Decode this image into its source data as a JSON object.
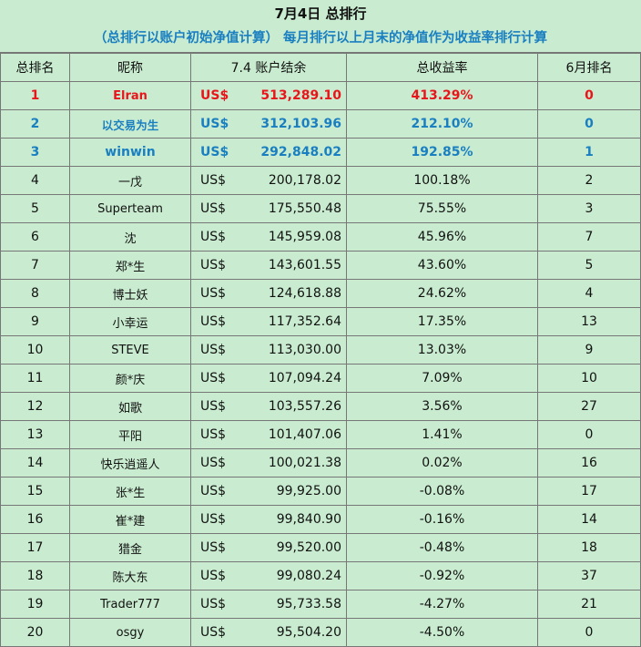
{
  "title": "7月4日 总排行",
  "subtitle": "（总排行以账户初始净值计算）  每月排行以上月末的净值作为收益率排行计算",
  "columns": {
    "rank": "总排名",
    "nickname": "昵称",
    "account": "7.4 账户结余",
    "return": "总收益率",
    "june_rank": "6月排名"
  },
  "currency": "US$",
  "rows": [
    {
      "rank": "1",
      "name": "Elran",
      "balance": "513,289.10",
      "return": "413.29%",
      "june": "0"
    },
    {
      "rank": "2",
      "name": "以交易为生",
      "balance": "312,103.96",
      "return": "212.10%",
      "june": "0"
    },
    {
      "rank": "3",
      "name": "winwin",
      "balance": "292,848.02",
      "return": "192.85%",
      "june": "1"
    },
    {
      "rank": "4",
      "name": "一戊",
      "balance": "200,178.02",
      "return": "100.18%",
      "june": "2"
    },
    {
      "rank": "5",
      "name": "Superteam",
      "balance": "175,550.48",
      "return": "75.55%",
      "june": "3"
    },
    {
      "rank": "6",
      "name": "沈",
      "balance": "145,959.08",
      "return": "45.96%",
      "june": "7"
    },
    {
      "rank": "7",
      "name": "郑*生",
      "balance": "143,601.55",
      "return": "43.60%",
      "june": "5"
    },
    {
      "rank": "8",
      "name": "博士妖",
      "balance": "124,618.88",
      "return": "24.62%",
      "june": "4"
    },
    {
      "rank": "9",
      "name": "小幸运",
      "balance": "117,352.64",
      "return": "17.35%",
      "june": "13"
    },
    {
      "rank": "10",
      "name": "STEVE",
      "balance": "113,030.00",
      "return": "13.03%",
      "june": "9"
    },
    {
      "rank": "11",
      "name": "颜*庆",
      "balance": "107,094.24",
      "return": "7.09%",
      "june": "10"
    },
    {
      "rank": "12",
      "name": "如歌",
      "balance": "103,557.26",
      "return": "3.56%",
      "june": "27"
    },
    {
      "rank": "13",
      "name": "平阳",
      "balance": "101,407.06",
      "return": "1.41%",
      "june": "0"
    },
    {
      "rank": "14",
      "name": "快乐逍遥人",
      "balance": "100,021.38",
      "return": "0.02%",
      "june": "16"
    },
    {
      "rank": "15",
      "name": "张*生",
      "balance": "99,925.00",
      "return": "-0.08%",
      "june": "17"
    },
    {
      "rank": "16",
      "name": "崔*建",
      "balance": "99,840.90",
      "return": "-0.16%",
      "june": "14"
    },
    {
      "rank": "17",
      "name": "猎金",
      "balance": "99,520.00",
      "return": "-0.48%",
      "june": "18"
    },
    {
      "rank": "18",
      "name": "陈大东",
      "balance": "99,080.24",
      "return": "-0.92%",
      "june": "37"
    },
    {
      "rank": "19",
      "name": "Trader777",
      "balance": "95,733.58",
      "return": "-4.27%",
      "june": "21"
    },
    {
      "rank": "20",
      "name": "osgy",
      "balance": "95,504.20",
      "return": "-4.50%",
      "june": "0"
    }
  ]
}
